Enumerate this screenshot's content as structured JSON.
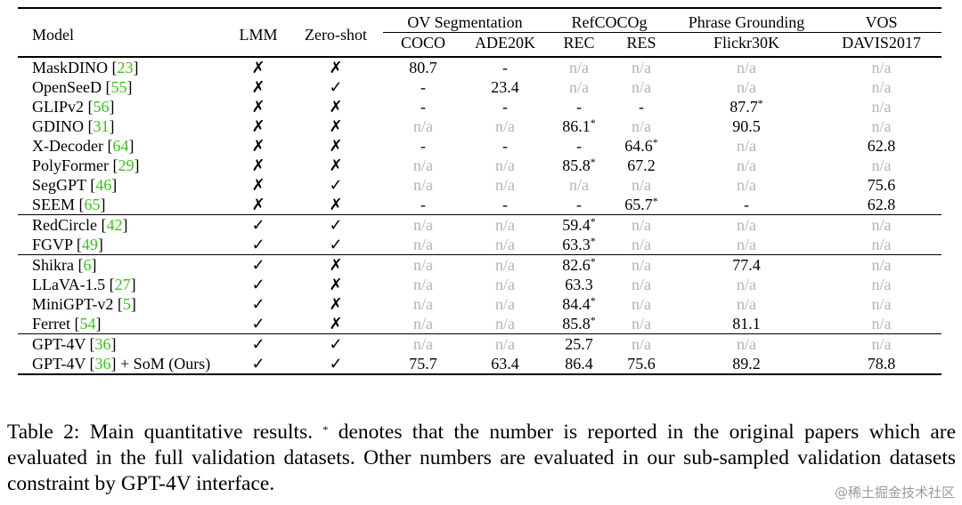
{
  "table": {
    "headers": {
      "model": "Model",
      "lmm": "LMM",
      "zero_shot": "Zero-shot",
      "groups": [
        {
          "label": "OV Segmentation",
          "span": 2,
          "subs": [
            "COCO",
            "ADE20K"
          ]
        },
        {
          "label": "RefCOCOg",
          "span": 2,
          "subs": [
            "REC",
            "RES"
          ]
        },
        {
          "label": "Phrase Grounding",
          "span": 1,
          "subs": [
            "Flickr30K"
          ]
        },
        {
          "label": "VOS",
          "span": 1,
          "subs": [
            "DAVIS2017"
          ]
        }
      ]
    },
    "row_groups": [
      [
        {
          "model": "MaskDINO",
          "ref": "23",
          "suffix": "",
          "lmm": "✗",
          "zs": "✗",
          "cells": [
            "80.7",
            "-",
            "n/a",
            "n/a",
            "n/a",
            "n/a"
          ]
        },
        {
          "model": "OpenSeeD",
          "ref": "55",
          "suffix": "",
          "lmm": "✗",
          "zs": "✓",
          "cells": [
            "-",
            "23.4",
            "n/a",
            "n/a",
            "n/a",
            "n/a"
          ]
        },
        {
          "model": "GLIPv2",
          "ref": "56",
          "suffix": "",
          "lmm": "✗",
          "zs": "✗",
          "cells": [
            "-",
            "-",
            "-",
            "-",
            "87.7*",
            "n/a"
          ]
        },
        {
          "model": "GDINO",
          "ref": "31",
          "suffix": "",
          "lmm": "✗",
          "zs": "✗",
          "cells": [
            "n/a",
            "n/a",
            "86.1*",
            "n/a",
            "90.5",
            "n/a"
          ]
        },
        {
          "model": "X-Decoder",
          "ref": "64",
          "suffix": "",
          "lmm": "✗",
          "zs": "✗",
          "cells": [
            "-",
            "-",
            "-",
            "64.6*",
            "n/a",
            "62.8"
          ]
        },
        {
          "model": "PolyFormer",
          "ref": "29",
          "suffix": "",
          "lmm": "✗",
          "zs": "✗",
          "cells": [
            "n/a",
            "n/a",
            "85.8*",
            "67.2",
            "n/a",
            "n/a"
          ]
        },
        {
          "model": "SegGPT",
          "ref": "46",
          "suffix": "",
          "lmm": "✗",
          "zs": "✓",
          "cells": [
            "n/a",
            "n/a",
            "n/a",
            "n/a",
            "n/a",
            "75.6"
          ]
        },
        {
          "model": "SEEM",
          "ref": "65",
          "suffix": "",
          "lmm": "✗",
          "zs": "✗",
          "cells": [
            "-",
            "-",
            "-",
            "65.7*",
            "-",
            "62.8"
          ]
        }
      ],
      [
        {
          "model": "RedCircle",
          "ref": "42",
          "suffix": "",
          "lmm": "✓",
          "zs": "✓",
          "cells": [
            "n/a",
            "n/a",
            "59.4*",
            "n/a",
            "n/a",
            "n/a"
          ]
        },
        {
          "model": "FGVP",
          "ref": "49",
          "suffix": "",
          "lmm": "✓",
          "zs": "✓",
          "cells": [
            "n/a",
            "n/a",
            "63.3*",
            "n/a",
            "n/a",
            "n/a"
          ]
        }
      ],
      [
        {
          "model": "Shikra",
          "ref": "6",
          "suffix": "",
          "lmm": "✓",
          "zs": "✗",
          "cells": [
            "n/a",
            "n/a",
            "82.6*",
            "n/a",
            "77.4",
            "n/a"
          ]
        },
        {
          "model": "LLaVA-1.5",
          "ref": "27",
          "suffix": "",
          "lmm": "✓",
          "zs": "✗",
          "cells": [
            "n/a",
            "n/a",
            "63.3",
            "n/a",
            "n/a",
            "n/a"
          ]
        },
        {
          "model": "MiniGPT-v2",
          "ref": "5",
          "suffix": "",
          "lmm": "✓",
          "zs": "✗",
          "cells": [
            "n/a",
            "n/a",
            "84.4*",
            "n/a",
            "n/a",
            "n/a"
          ]
        },
        {
          "model": "Ferret",
          "ref": "54",
          "suffix": "",
          "lmm": "✓",
          "zs": "✗",
          "cells": [
            "n/a",
            "n/a",
            "85.8*",
            "n/a",
            "81.1",
            "n/a"
          ]
        }
      ],
      [
        {
          "model": "GPT-4V",
          "ref": "36",
          "suffix": "",
          "lmm": "✓",
          "zs": "✓",
          "cells": [
            "n/a",
            "n/a",
            "25.7",
            "n/a",
            "n/a",
            "n/a"
          ]
        },
        {
          "model": "GPT-4V",
          "ref": "36",
          "suffix": " + SoM (Ours)",
          "lmm": "✓",
          "zs": "✓",
          "cells": [
            "75.7",
            "63.4",
            "86.4",
            "75.6",
            "89.2",
            "78.8"
          ],
          "bold": [
            1,
            2,
            3,
            5
          ]
        }
      ]
    ]
  },
  "caption": "Table 2: Main quantitative results. * denotes that the number is reported in the original papers which are evaluated in the full validation datasets. Other numbers are evaluated in our sub-sampled validation datasets constraint by GPT-4V interface.",
  "watermark": "@稀土掘金技术社区",
  "colors": {
    "citation": "#3ac21a",
    "not_applicable": "#b4b4b4"
  }
}
